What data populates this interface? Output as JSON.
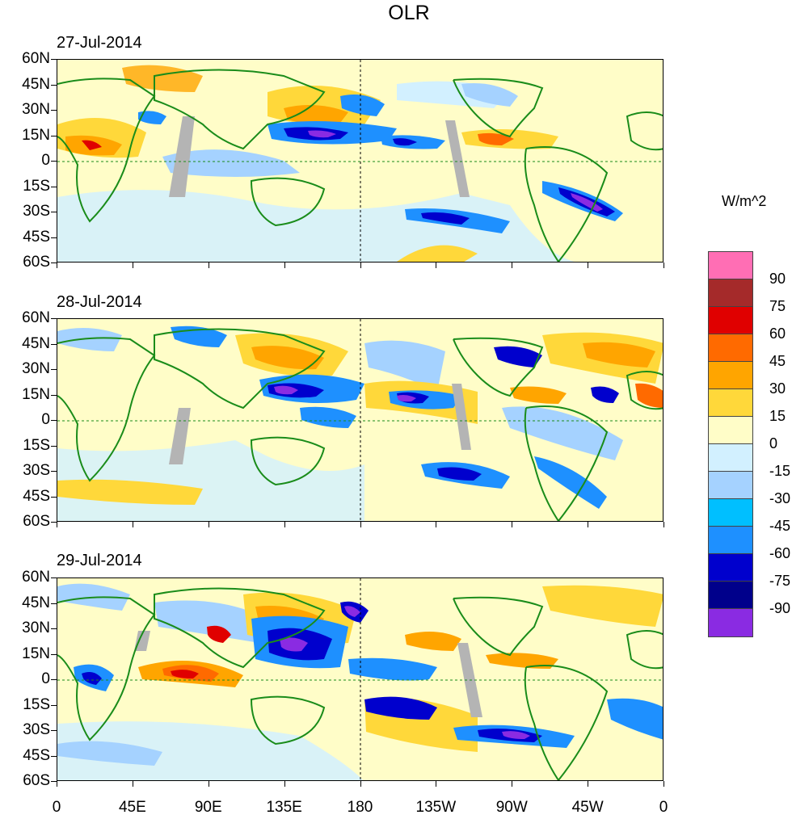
{
  "title": "OLR",
  "units": "W/m^2",
  "panels": [
    {
      "date": "27-Jul-2014"
    },
    {
      "date": "28-Jul-2014"
    },
    {
      "date": "29-Jul-2014"
    }
  ],
  "lat_labels": [
    "60N",
    "45N",
    "30N",
    "15N",
    "0",
    "15S",
    "30S",
    "45S",
    "60S"
  ],
  "lon_labels": [
    "0",
    "45E",
    "90E",
    "135E",
    "180",
    "135W",
    "90W",
    "45W",
    "0"
  ],
  "colorbar": {
    "labels": [
      "90",
      "75",
      "60",
      "45",
      "30",
      "15",
      "0",
      "-15",
      "-30",
      "-45",
      "-60",
      "-75",
      "-90"
    ],
    "colors": [
      "#ff6eb4",
      "#a52a2a",
      "#e00000",
      "#ff6a00",
      "#ffa500",
      "#ffd83a",
      "#fffdc8",
      "#d2f0ff",
      "#a5d2ff",
      "#00bfff",
      "#1e90ff",
      "#0000cd",
      "#00008b",
      "#8a2be2"
    ]
  },
  "legend_colors": {
    "land_outline": "#1a8c1a",
    "missing": "#b4b4b4"
  }
}
